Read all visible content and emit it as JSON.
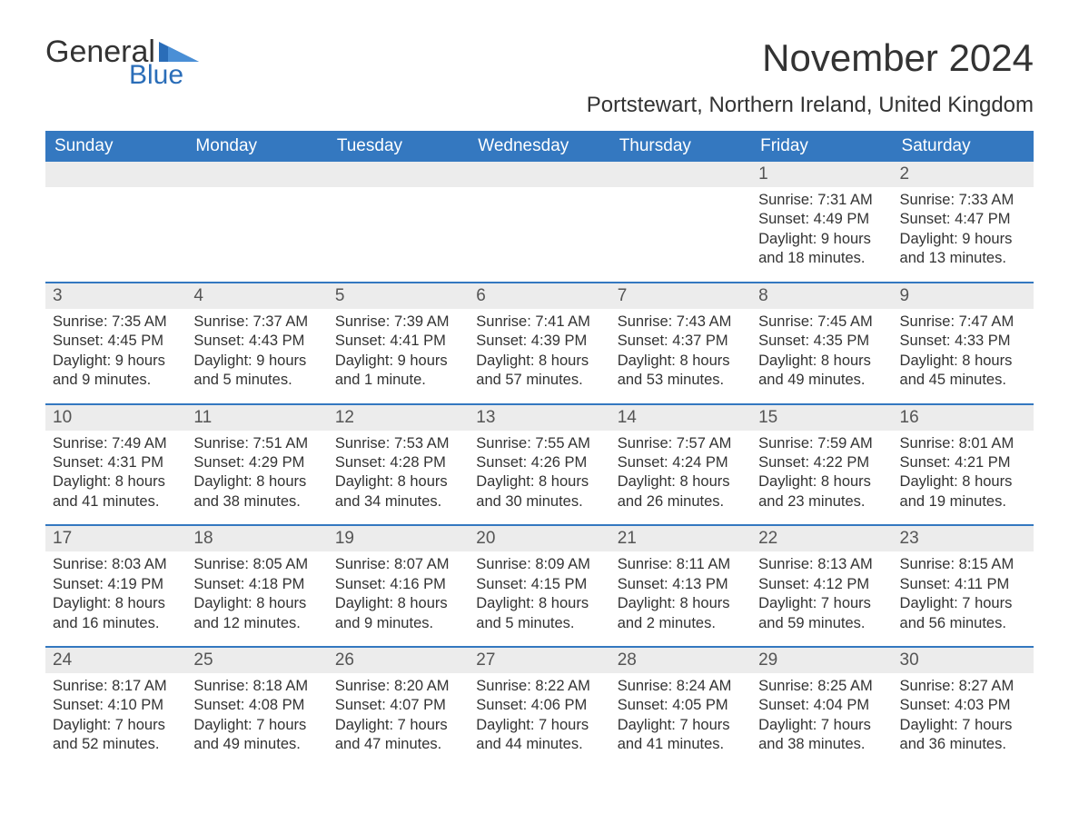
{
  "logo": {
    "word1": "General",
    "word2": "Blue"
  },
  "title": "November 2024",
  "subtitle": "Portstewart, Northern Ireland, United Kingdom",
  "colors": {
    "brand_blue": "#3478c0",
    "header_bg": "#3478c0",
    "header_text": "#ffffff",
    "daynum_bg": "#ececec",
    "text": "#333333",
    "page_bg": "#ffffff",
    "row_divider": "#3478c0"
  },
  "typography": {
    "title_fontsize": 42,
    "subtitle_fontsize": 24,
    "dow_fontsize": 19,
    "daynum_fontsize": 19,
    "body_fontsize": 16.5,
    "font_family": "Arial"
  },
  "days_of_week": [
    "Sunday",
    "Monday",
    "Tuesday",
    "Wednesday",
    "Thursday",
    "Friday",
    "Saturday"
  ],
  "weeks": [
    [
      {
        "empty": true
      },
      {
        "empty": true
      },
      {
        "empty": true
      },
      {
        "empty": true
      },
      {
        "empty": true
      },
      {
        "num": "1",
        "sunrise": "Sunrise: 7:31 AM",
        "sunset": "Sunset: 4:49 PM",
        "daylight1": "Daylight: 9 hours",
        "daylight2": "and 18 minutes."
      },
      {
        "num": "2",
        "sunrise": "Sunrise: 7:33 AM",
        "sunset": "Sunset: 4:47 PM",
        "daylight1": "Daylight: 9 hours",
        "daylight2": "and 13 minutes."
      }
    ],
    [
      {
        "num": "3",
        "sunrise": "Sunrise: 7:35 AM",
        "sunset": "Sunset: 4:45 PM",
        "daylight1": "Daylight: 9 hours",
        "daylight2": "and 9 minutes."
      },
      {
        "num": "4",
        "sunrise": "Sunrise: 7:37 AM",
        "sunset": "Sunset: 4:43 PM",
        "daylight1": "Daylight: 9 hours",
        "daylight2": "and 5 minutes."
      },
      {
        "num": "5",
        "sunrise": "Sunrise: 7:39 AM",
        "sunset": "Sunset: 4:41 PM",
        "daylight1": "Daylight: 9 hours",
        "daylight2": "and 1 minute."
      },
      {
        "num": "6",
        "sunrise": "Sunrise: 7:41 AM",
        "sunset": "Sunset: 4:39 PM",
        "daylight1": "Daylight: 8 hours",
        "daylight2": "and 57 minutes."
      },
      {
        "num": "7",
        "sunrise": "Sunrise: 7:43 AM",
        "sunset": "Sunset: 4:37 PM",
        "daylight1": "Daylight: 8 hours",
        "daylight2": "and 53 minutes."
      },
      {
        "num": "8",
        "sunrise": "Sunrise: 7:45 AM",
        "sunset": "Sunset: 4:35 PM",
        "daylight1": "Daylight: 8 hours",
        "daylight2": "and 49 minutes."
      },
      {
        "num": "9",
        "sunrise": "Sunrise: 7:47 AM",
        "sunset": "Sunset: 4:33 PM",
        "daylight1": "Daylight: 8 hours",
        "daylight2": "and 45 minutes."
      }
    ],
    [
      {
        "num": "10",
        "sunrise": "Sunrise: 7:49 AM",
        "sunset": "Sunset: 4:31 PM",
        "daylight1": "Daylight: 8 hours",
        "daylight2": "and 41 minutes."
      },
      {
        "num": "11",
        "sunrise": "Sunrise: 7:51 AM",
        "sunset": "Sunset: 4:29 PM",
        "daylight1": "Daylight: 8 hours",
        "daylight2": "and 38 minutes."
      },
      {
        "num": "12",
        "sunrise": "Sunrise: 7:53 AM",
        "sunset": "Sunset: 4:28 PM",
        "daylight1": "Daylight: 8 hours",
        "daylight2": "and 34 minutes."
      },
      {
        "num": "13",
        "sunrise": "Sunrise: 7:55 AM",
        "sunset": "Sunset: 4:26 PM",
        "daylight1": "Daylight: 8 hours",
        "daylight2": "and 30 minutes."
      },
      {
        "num": "14",
        "sunrise": "Sunrise: 7:57 AM",
        "sunset": "Sunset: 4:24 PM",
        "daylight1": "Daylight: 8 hours",
        "daylight2": "and 26 minutes."
      },
      {
        "num": "15",
        "sunrise": "Sunrise: 7:59 AM",
        "sunset": "Sunset: 4:22 PM",
        "daylight1": "Daylight: 8 hours",
        "daylight2": "and 23 minutes."
      },
      {
        "num": "16",
        "sunrise": "Sunrise: 8:01 AM",
        "sunset": "Sunset: 4:21 PM",
        "daylight1": "Daylight: 8 hours",
        "daylight2": "and 19 minutes."
      }
    ],
    [
      {
        "num": "17",
        "sunrise": "Sunrise: 8:03 AM",
        "sunset": "Sunset: 4:19 PM",
        "daylight1": "Daylight: 8 hours",
        "daylight2": "and 16 minutes."
      },
      {
        "num": "18",
        "sunrise": "Sunrise: 8:05 AM",
        "sunset": "Sunset: 4:18 PM",
        "daylight1": "Daylight: 8 hours",
        "daylight2": "and 12 minutes."
      },
      {
        "num": "19",
        "sunrise": "Sunrise: 8:07 AM",
        "sunset": "Sunset: 4:16 PM",
        "daylight1": "Daylight: 8 hours",
        "daylight2": "and 9 minutes."
      },
      {
        "num": "20",
        "sunrise": "Sunrise: 8:09 AM",
        "sunset": "Sunset: 4:15 PM",
        "daylight1": "Daylight: 8 hours",
        "daylight2": "and 5 minutes."
      },
      {
        "num": "21",
        "sunrise": "Sunrise: 8:11 AM",
        "sunset": "Sunset: 4:13 PM",
        "daylight1": "Daylight: 8 hours",
        "daylight2": "and 2 minutes."
      },
      {
        "num": "22",
        "sunrise": "Sunrise: 8:13 AM",
        "sunset": "Sunset: 4:12 PM",
        "daylight1": "Daylight: 7 hours",
        "daylight2": "and 59 minutes."
      },
      {
        "num": "23",
        "sunrise": "Sunrise: 8:15 AM",
        "sunset": "Sunset: 4:11 PM",
        "daylight1": "Daylight: 7 hours",
        "daylight2": "and 56 minutes."
      }
    ],
    [
      {
        "num": "24",
        "sunrise": "Sunrise: 8:17 AM",
        "sunset": "Sunset: 4:10 PM",
        "daylight1": "Daylight: 7 hours",
        "daylight2": "and 52 minutes."
      },
      {
        "num": "25",
        "sunrise": "Sunrise: 8:18 AM",
        "sunset": "Sunset: 4:08 PM",
        "daylight1": "Daylight: 7 hours",
        "daylight2": "and 49 minutes."
      },
      {
        "num": "26",
        "sunrise": "Sunrise: 8:20 AM",
        "sunset": "Sunset: 4:07 PM",
        "daylight1": "Daylight: 7 hours",
        "daylight2": "and 47 minutes."
      },
      {
        "num": "27",
        "sunrise": "Sunrise: 8:22 AM",
        "sunset": "Sunset: 4:06 PM",
        "daylight1": "Daylight: 7 hours",
        "daylight2": "and 44 minutes."
      },
      {
        "num": "28",
        "sunrise": "Sunrise: 8:24 AM",
        "sunset": "Sunset: 4:05 PM",
        "daylight1": "Daylight: 7 hours",
        "daylight2": "and 41 minutes."
      },
      {
        "num": "29",
        "sunrise": "Sunrise: 8:25 AM",
        "sunset": "Sunset: 4:04 PM",
        "daylight1": "Daylight: 7 hours",
        "daylight2": "and 38 minutes."
      },
      {
        "num": "30",
        "sunrise": "Sunrise: 8:27 AM",
        "sunset": "Sunset: 4:03 PM",
        "daylight1": "Daylight: 7 hours",
        "daylight2": "and 36 minutes."
      }
    ]
  ]
}
